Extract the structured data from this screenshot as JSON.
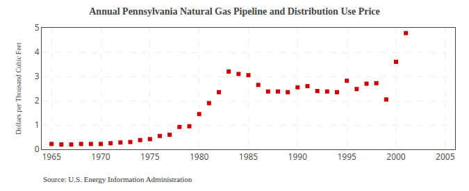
{
  "chart_data": {
    "type": "scatter",
    "title": "Annual Pennsylvania Natural Gas Pipeline and Distribution Use Price",
    "y_label": "Dollars per Thousand Cubic Feet",
    "annotations": [
      "Source: U.S. Energy Information Administration"
    ],
    "x": [
      1965,
      1966,
      1967,
      1968,
      1969,
      1970,
      1971,
      1972,
      1973,
      1974,
      1975,
      1976,
      1977,
      1978,
      1979,
      1980,
      1981,
      1982,
      1983,
      1984,
      1985,
      1986,
      1987,
      1988,
      1989,
      1990,
      1991,
      1992,
      1993,
      1994,
      1995,
      1996,
      1997,
      1998,
      1999,
      2000,
      2001
    ],
    "values": [
      0.22,
      0.2,
      0.2,
      0.22,
      0.22,
      0.22,
      0.25,
      0.28,
      0.3,
      0.38,
      0.42,
      0.55,
      0.6,
      0.92,
      0.95,
      1.45,
      1.9,
      2.35,
      3.2,
      3.1,
      3.05,
      2.65,
      2.38,
      2.38,
      2.35,
      2.55,
      2.6,
      2.4,
      2.38,
      2.35,
      2.82,
      2.48,
      2.7,
      2.72,
      2.05,
      3.6,
      4.78
    ],
    "color": "#cc0000",
    "marker": "square",
    "xlim": [
      1964,
      2006
    ],
    "xticks": [
      1965,
      1970,
      1975,
      1980,
      1985,
      1990,
      1995,
      2000,
      2005
    ],
    "ylim": [
      0,
      5
    ],
    "yticks": [
      0,
      1,
      2,
      3,
      4,
      5
    ],
    "grid": true
  }
}
